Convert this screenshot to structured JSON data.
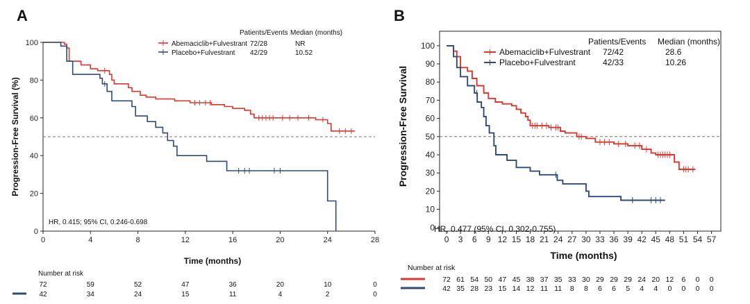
{
  "colors": {
    "abema": "#d9382d",
    "placebo": "#2e4a78",
    "axis": "#222222",
    "ref": "#777777"
  },
  "chart_data": [
    {
      "panel": "A",
      "type": "line",
      "subtype": "kaplan-meier",
      "xlabel": "Time (months)",
      "ylabel": "Progression-Free Survival (%)",
      "xlim": [
        0,
        28
      ],
      "ylim": [
        0,
        100
      ],
      "xticks": [
        0,
        4,
        8,
        12,
        16,
        20,
        24,
        28
      ],
      "yticks": [
        0,
        20,
        40,
        60,
        80,
        100
      ],
      "reference_line": 50,
      "legend_header": {
        "pe": "Patients/Events",
        "median": "Median (months)"
      },
      "series": [
        {
          "name": "Abemaciclib+Fulvestrant",
          "pe": "72/28",
          "median": "NR",
          "steps": [
            [
              0,
              100
            ],
            [
              1.8,
              99
            ],
            [
              2,
              97
            ],
            [
              2.2,
              90
            ],
            [
              3.2,
              88
            ],
            [
              4,
              86
            ],
            [
              4.6,
              85
            ],
            [
              5.6,
              83
            ],
            [
              5.8,
              80
            ],
            [
              6,
              78
            ],
            [
              7.2,
              76
            ],
            [
              7.5,
              74
            ],
            [
              8.2,
              72
            ],
            [
              8.7,
              71
            ],
            [
              9.5,
              70
            ],
            [
              11.1,
              69
            ],
            [
              12.4,
              68
            ],
            [
              14.2,
              67
            ],
            [
              15.3,
              66
            ],
            [
              16,
              65
            ],
            [
              17,
              64
            ],
            [
              17.5,
              62
            ],
            [
              17.8,
              60
            ],
            [
              23,
              59
            ],
            [
              24,
              57
            ],
            [
              24.3,
              53
            ],
            [
              26.3,
              53
            ]
          ],
          "censors": [
            5.2,
            12.8,
            13.2,
            13.7,
            14.1,
            18.2,
            18.5,
            18.8,
            19.1,
            19.4,
            20.2,
            20.8,
            21.5,
            22.4,
            23.6,
            25,
            25.5,
            26
          ]
        },
        {
          "name": "Placebo+Fulvestrant",
          "pe": "42/29",
          "median": "10.52",
          "steps": [
            [
              0,
              100
            ],
            [
              1.5,
              98
            ],
            [
              2,
              90
            ],
            [
              2.5,
              83
            ],
            [
              4.8,
              81
            ],
            [
              5,
              78
            ],
            [
              5.4,
              74
            ],
            [
              5.8,
              69
            ],
            [
              7.5,
              66
            ],
            [
              7.8,
              61
            ],
            [
              8.8,
              58
            ],
            [
              9.5,
              55
            ],
            [
              10.1,
              52
            ],
            [
              10.5,
              48
            ],
            [
              11,
              45
            ],
            [
              11.3,
              40
            ],
            [
              13.8,
              37
            ],
            [
              15.5,
              32
            ],
            [
              24,
              32
            ],
            [
              24,
              16
            ],
            [
              24.7,
              16
            ],
            [
              24.7,
              0
            ]
          ],
          "censors": [
            5.2,
            16.5,
            17,
            17.4,
            19.5,
            20
          ]
        }
      ],
      "annotation": "HR, 0.415; 95% CI, 0.246-0.698",
      "risk_table": {
        "title": "Number at risk",
        "times": [
          0,
          4,
          8,
          12,
          16,
          20,
          24,
          28
        ],
        "rows": [
          {
            "series": "Abemaciclib+Fulvestrant",
            "values": [
              72,
              59,
              52,
              47,
              36,
              20,
              10,
              0
            ]
          },
          {
            "series": "Placebo+Fulvestrant",
            "values": [
              42,
              34,
              24,
              15,
              11,
              4,
              2,
              0
            ]
          }
        ]
      }
    },
    {
      "panel": "B",
      "type": "line",
      "subtype": "kaplan-meier",
      "xlabel": "Time (months)",
      "ylabel": "Progression-Free Survival",
      "xlim": [
        -1.5,
        59
      ],
      "ylim": [
        -2,
        103
      ],
      "xticks": [
        0,
        3,
        6,
        9,
        12,
        15,
        18,
        21,
        24,
        27,
        30,
        33,
        36,
        39,
        42,
        45,
        48,
        51,
        54,
        57
      ],
      "yticks": [
        0,
        10,
        20,
        30,
        40,
        50,
        60,
        70,
        80,
        90,
        100
      ],
      "reference_line": 50,
      "legend_header": {
        "pe": "Patients/Events",
        "median": "Median (months)"
      },
      "series": [
        {
          "name": "Abemaciclib+Fulvestrant",
          "pe": "72/42",
          "median": "28.6",
          "steps": [
            [
              0,
              100
            ],
            [
              1.5,
              97
            ],
            [
              2.2,
              94
            ],
            [
              3,
              88
            ],
            [
              4.5,
              86
            ],
            [
              5.5,
              82
            ],
            [
              6.5,
              78
            ],
            [
              8,
              74
            ],
            [
              9,
              71
            ],
            [
              10.5,
              69
            ],
            [
              12,
              68
            ],
            [
              14,
              67
            ],
            [
              15,
              65
            ],
            [
              16,
              63
            ],
            [
              17,
              61
            ],
            [
              17.5,
              59
            ],
            [
              18,
              56
            ],
            [
              22,
              55
            ],
            [
              24.5,
              53
            ],
            [
              25.5,
              52
            ],
            [
              28,
              50
            ],
            [
              30,
              49
            ],
            [
              32,
              47
            ],
            [
              36,
              46
            ],
            [
              39,
              45
            ],
            [
              42,
              43
            ],
            [
              44,
              41
            ],
            [
              45,
              40
            ],
            [
              49,
              36
            ],
            [
              50,
              32
            ],
            [
              53.5,
              32
            ]
          ],
          "censors": [
            18.5,
            19,
            19.5,
            20.5,
            21.5,
            22.5,
            23.5,
            24,
            28.5,
            29,
            33,
            34,
            35,
            37,
            38.5,
            40.5,
            41.5,
            43,
            45.5,
            46,
            46.5,
            47,
            47.5,
            48,
            51,
            51.5,
            52,
            53
          ]
        },
        {
          "name": "Placebo+Fulvestrant",
          "pe": "42/33",
          "median": "10.26",
          "steps": [
            [
              0,
              100
            ],
            [
              1.5,
              94
            ],
            [
              2.2,
              88
            ],
            [
              3,
              83
            ],
            [
              4.5,
              78
            ],
            [
              6,
              74
            ],
            [
              6.6,
              69
            ],
            [
              7.5,
              66
            ],
            [
              8,
              61
            ],
            [
              8.5,
              56
            ],
            [
              9.2,
              52
            ],
            [
              10.2,
              45
            ],
            [
              10.6,
              40
            ],
            [
              13,
              37
            ],
            [
              15,
              33
            ],
            [
              18,
              31
            ],
            [
              20,
              29
            ],
            [
              23.8,
              26
            ],
            [
              25,
              24
            ],
            [
              30,
              20
            ],
            [
              30.6,
              17
            ],
            [
              37.5,
              15
            ],
            [
              47,
              15
            ]
          ],
          "censors": [
            6.5,
            23.5,
            40,
            44,
            45,
            46
          ]
        }
      ],
      "annotation": "HR, 0.477 (95% CI, 0.302-0.755)",
      "risk_table": {
        "title": "Number at risk",
        "times": [
          0,
          3,
          6,
          9,
          12,
          15,
          18,
          21,
          24,
          27,
          30,
          33,
          36,
          39,
          42,
          45,
          48,
          51,
          54,
          57
        ],
        "rows": [
          {
            "series": "Abemaciclib+Fulvestrant",
            "values": [
              72,
              61,
              54,
              50,
              47,
              45,
              38,
              37,
              35,
              33,
              30,
              29,
              29,
              29,
              24,
              20,
              12,
              6,
              0,
              0
            ]
          },
          {
            "series": "Placebo+Fulvestrant",
            "values": [
              42,
              35,
              28,
              23,
              15,
              14,
              12,
              11,
              11,
              8,
              8,
              6,
              6,
              5,
              4,
              4,
              0,
              0,
              0,
              0
            ]
          }
        ]
      }
    }
  ],
  "panel_labels": [
    "A",
    "B"
  ]
}
